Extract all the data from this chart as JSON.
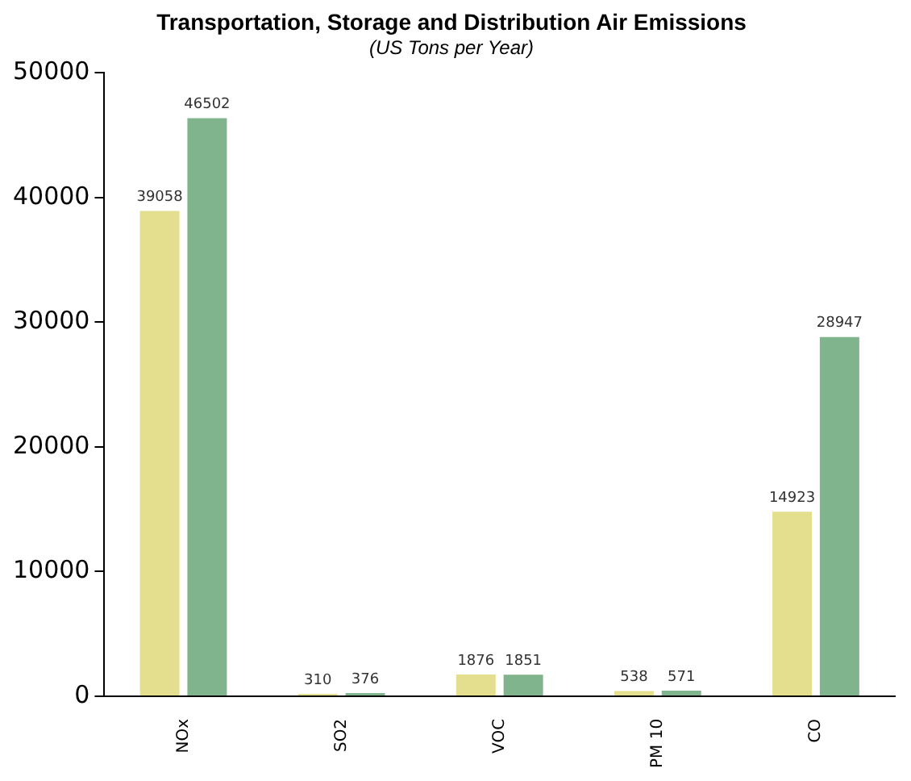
{
  "chart_data": {
    "type": "bar",
    "title": "Transportation, Storage and Distribution Air Emissions",
    "subtitle": "(US Tons per Year)",
    "categories": [
      "NOx",
      "SO2",
      "VOC",
      "PM 10",
      "CO"
    ],
    "series": [
      {
        "color": "#e3df8f",
        "values": [
          39058,
          310,
          1876,
          538,
          14923
        ]
      },
      {
        "color": "#7fb48c",
        "values": [
          46502,
          376,
          1851,
          571,
          28947
        ]
      }
    ],
    "ylim": [
      0,
      50000
    ],
    "yticks": [
      0,
      10000,
      20000,
      30000,
      40000,
      50000
    ],
    "grid": false,
    "legend": false,
    "data_labels": true
  }
}
